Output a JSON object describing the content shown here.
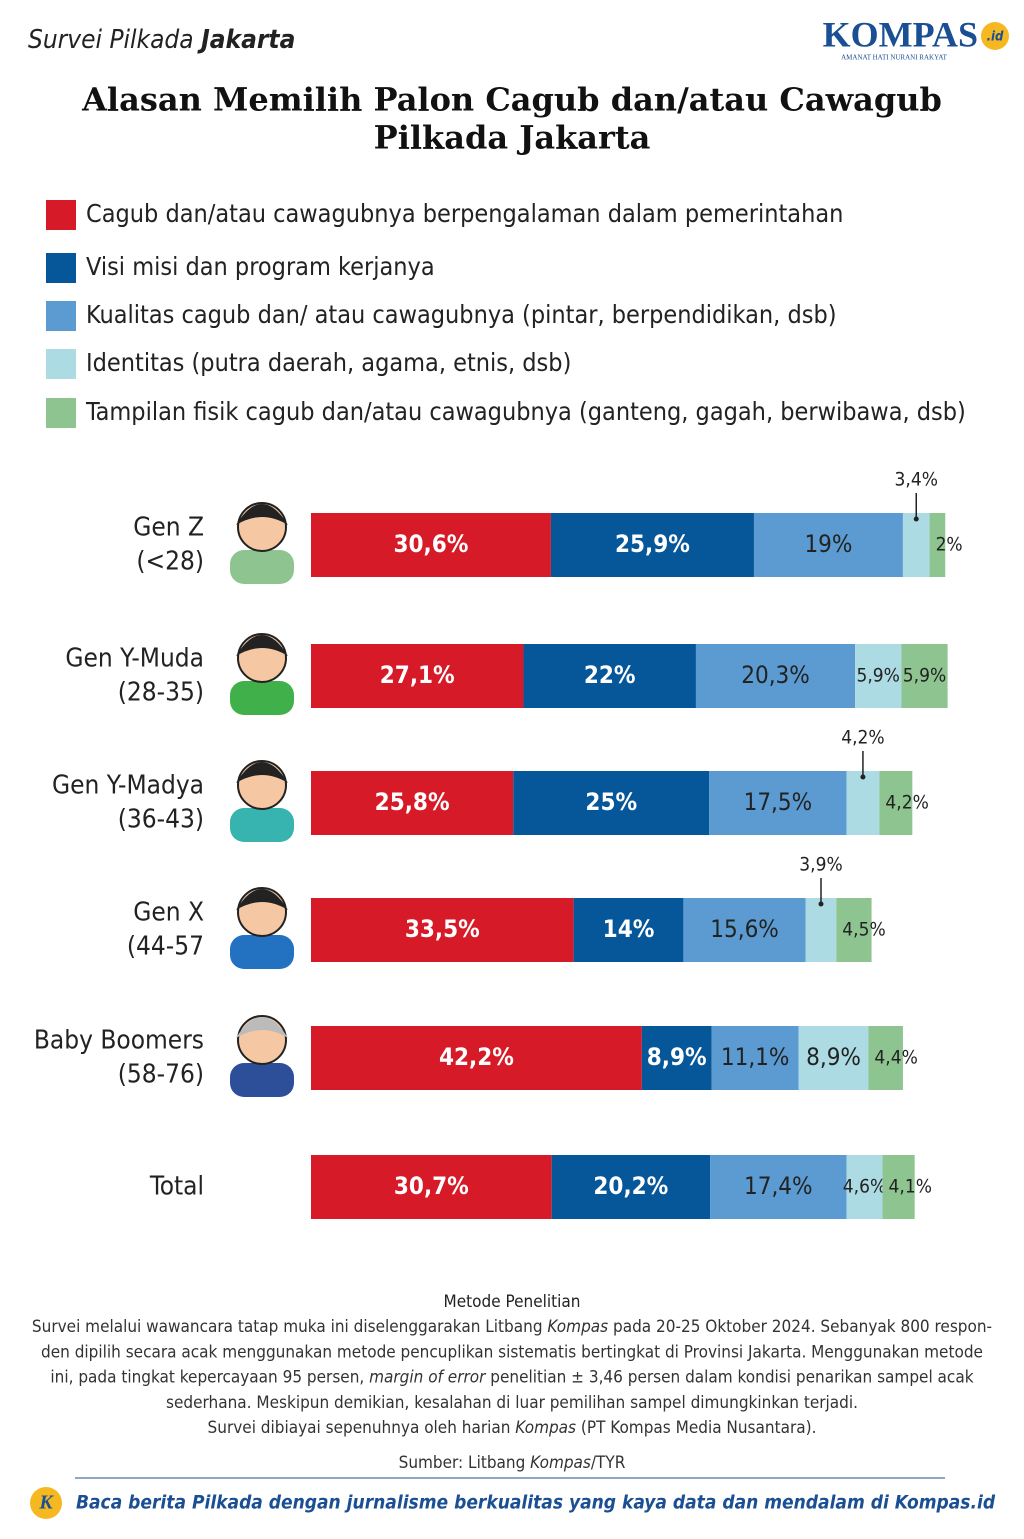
{
  "header": {
    "kicker": "Survei Pilkada",
    "kicker_bold": "Jakarta",
    "logo": "KOMPAS",
    "logo_suffix": ".id",
    "tagline": "AMANAT HATI NURANI RAKYAT"
  },
  "chart_data": {
    "type": "bar",
    "orientation": "horizontal",
    "stacked": true,
    "title": [
      "Alasan Memilih Palon Cagub dan/atau Cawagub",
      "Pilkada Jakarta"
    ],
    "categories": [
      [
        "Gen Z",
        "(<28)"
      ],
      [
        "Gen Y-Muda",
        "(28-35)"
      ],
      [
        "Gen Y-Madya",
        "(36-43)"
      ],
      [
        "Gen X",
        "(44-57"
      ],
      [
        "Baby Boomers",
        "(58-76)"
      ],
      [
        "Total"
      ]
    ],
    "xlim": [
      0,
      100
    ],
    "series": [
      {
        "name": "Cagub dan/atau cawagubnya berpengalaman dalam pemerintahan",
        "color": "#d71a28",
        "values": [
          30.6,
          27.1,
          25.8,
          33.5,
          42.2,
          30.7
        ],
        "value_labels": [
          "30,6%",
          "27,1%",
          "25,8%",
          "33,5%",
          "42,2%",
          "30,7%"
        ]
      },
      {
        "name": "Visi misi dan program kerjanya",
        "color": "#06569a",
        "values": [
          25.9,
          22,
          25,
          14,
          8.9,
          20.2
        ],
        "value_labels": [
          "25,9%",
          "22%",
          "25%",
          "14%",
          "8,9%",
          "20,2%"
        ]
      },
      {
        "name": "Kualitas cagub dan/ atau cawagubnya (pintar, berpendidikan, dsb)",
        "color": "#5b9bd1",
        "values": [
          19,
          20.3,
          17.5,
          15.6,
          11.1,
          17.4
        ],
        "value_labels": [
          "19%",
          "20,3%",
          "17,5%",
          "15,6%",
          "11,1%",
          "17,4%"
        ]
      },
      {
        "name": "Identitas (putra daerah, agama, etnis, dsb)",
        "color": "#acdbe3",
        "values": [
          3.4,
          5.9,
          4.2,
          3.9,
          8.9,
          4.6
        ],
        "value_labels": [
          "3,4%",
          "5,9%",
          "4,2%",
          "3,9%",
          "8,9%",
          "4,6%"
        ]
      },
      {
        "name": "Tampilan fisik cagub dan/atau cawagubnya (ganteng, gagah, berwibawa, dsb)",
        "color": "#8dc48f",
        "values": [
          2,
          5.9,
          4.2,
          4.5,
          4.4,
          4.1
        ],
        "value_labels": [
          "2%",
          "5,9%",
          "4,2%",
          "4,5%",
          "4,4%",
          "4,1%"
        ]
      }
    ]
  },
  "notes": {
    "title": "Metode Penelitian",
    "lines": [
      [
        {
          "text": "Survei melalui wawancara tatap muka ini diselenggarakan Litbang "
        },
        {
          "text": "Kompas",
          "italic": true
        },
        {
          "text": " pada 20-25 Oktober 2024. Sebanyak 800 respon-"
        }
      ],
      [
        {
          "text": "den dipilih secara acak menggunakan metode pencuplikan sistematis bertingkat di Provinsi Jakarta. Menggunakan metode"
        }
      ],
      [
        {
          "text": "ini, pada tingkat kepercayaan 95 persen, "
        },
        {
          "text": "margin of error",
          "italic": true
        },
        {
          "text": " penelitian ± 3,46 persen dalam kondisi penarikan sampel acak"
        }
      ],
      [
        {
          "text": "sederhana. Meskipun demikian, kesalahan di luar pemilihan sampel dimungkinkan terjadi."
        }
      ],
      [
        {
          "text": "Survei dibiayai sepenuhnya oleh harian "
        },
        {
          "text": "Kompas",
          "italic": true
        },
        {
          "text": " (PT Kompas Media Nusantara)."
        }
      ]
    ],
    "source": [
      {
        "text": "Sumber: Litbang "
      },
      {
        "text": "Kompas",
        "italic": true
      },
      {
        "text": "/TYR"
      }
    ]
  },
  "footer": {
    "text": "Baca berita Pilkada dengan jurnalisme berkualitas yang kaya data dan mendalam di Kompas.id"
  }
}
